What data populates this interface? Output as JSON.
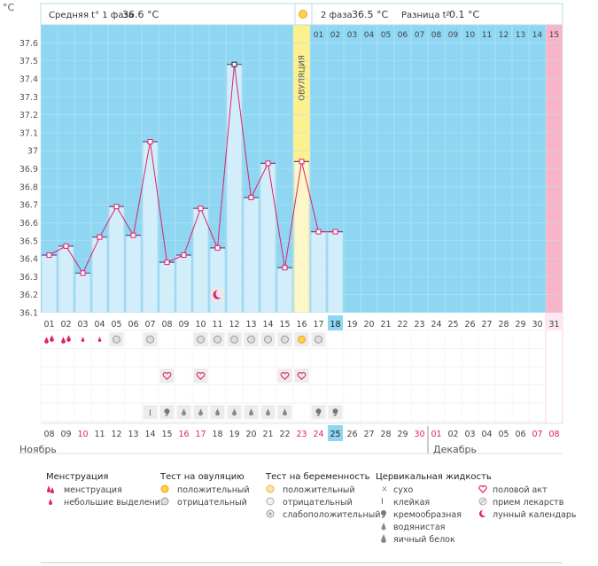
{
  "chart_data": {
    "type": "bar",
    "title": "",
    "xlabel": "",
    "ylabel": "°C",
    "ylim": [
      36.1,
      37.7
    ],
    "y_ticks": [
      "37.6",
      "37.5",
      "37.4",
      "37.3",
      "37.2",
      "37.1",
      "37",
      "36.9",
      "36.8",
      "36.7",
      "36.6",
      "36.5",
      "36.4",
      "36.3",
      "36.2",
      "36.1"
    ],
    "cycle_days": [
      "01",
      "02",
      "03",
      "04",
      "05",
      "06",
      "07",
      "08",
      "09",
      "10",
      "11",
      "12",
      "13",
      "14",
      "15",
      "16",
      "17",
      "18",
      "19",
      "20",
      "21",
      "22",
      "23",
      "24",
      "25",
      "26",
      "27",
      "28",
      "29",
      "30",
      "31"
    ],
    "calendar_days": [
      "08",
      "09",
      "10",
      "11",
      "12",
      "13",
      "14",
      "15",
      "16",
      "17",
      "18",
      "19",
      "20",
      "21",
      "22",
      "23",
      "24",
      "25",
      "26",
      "27",
      "28",
      "29",
      "30",
      "01",
      "02",
      "03",
      "04",
      "05",
      "06",
      "07",
      "08"
    ],
    "calendar_days_red": [
      2,
      8,
      9,
      15,
      16,
      22,
      23,
      29,
      30
    ],
    "current_cycle_day": 18,
    "today_calendar_index": 17,
    "series": [
      {
        "values": [
          36.42,
          36.47,
          36.32,
          36.52,
          36.69,
          36.53,
          37.05,
          36.38,
          36.42,
          36.68,
          36.46,
          37.48,
          36.74,
          36.93,
          36.35,
          36.94,
          36.55,
          36.55
        ]
      }
    ],
    "ovulation_day": 16,
    "ovulation_label": "ОВУЛЯЦИЯ",
    "post_ovulation_day_labels": [
      "01",
      "02",
      "03",
      "04",
      "05",
      "06",
      "07",
      "08",
      "09",
      "10",
      "11",
      "12",
      "13",
      "14",
      "15"
    ],
    "month_labels": [
      "Ноябрь",
      "Декабрь"
    ],
    "colors": {
      "phase1": "#d3eefb",
      "phase2": "#8fd6f2",
      "ovulation": "#fdf08e",
      "pink": "#f8b4c8",
      "line": "#e0206a",
      "bar_edge": "#9ad0ea"
    }
  },
  "header": {
    "phase1_label": "Средняя t° 1 фаза",
    "phase1_value": "36.6 °C",
    "phase2_label": "2 фаза",
    "phase2_value": "36.5 °C",
    "diff_label": "Разница t°",
    "diff_value": "-0.1 °C"
  },
  "symbols": {
    "menstruation_heavy_days": [
      1,
      2
    ],
    "menstruation_light_days": [
      3,
      4
    ],
    "ovulation_test_negative_days": [
      5,
      7,
      10,
      11,
      12,
      13,
      14,
      15,
      17
    ],
    "ovulation_test_positive_days": [
      16
    ],
    "intercourse_days": [
      8,
      10,
      15,
      16
    ],
    "mucus_sticky_days": [
      7
    ],
    "mucus_creamy_days": [
      8,
      17,
      18
    ],
    "mucus_watery_days": [
      9,
      10,
      11,
      12,
      13,
      14,
      15
    ],
    "moon_day": 11
  },
  "legend": {
    "menstruation_title": "Менструация",
    "menstruation": "менструация",
    "spotting": "небольшие выделения",
    "ovtest_title": "Тест на овуляцию",
    "ovtest_positive": "положительный",
    "ovtest_negative": "отрицательный",
    "pregtest_title": "Тест на беременность",
    "pregtest_positive": "положительный",
    "pregtest_negative": "отрицательный",
    "pregtest_weak": "слабоположительный",
    "mucus_title": "Цервикальная жидкость",
    "mucus_dry": "сухо",
    "mucus_sticky": "клейкая",
    "mucus_creamy": "кремообразная",
    "mucus_watery": "водянистая",
    "mucus_eggwhite": "яичный белок",
    "intercourse": "половой акт",
    "medication": "прием лекарств",
    "moon": "лунный календарь"
  }
}
